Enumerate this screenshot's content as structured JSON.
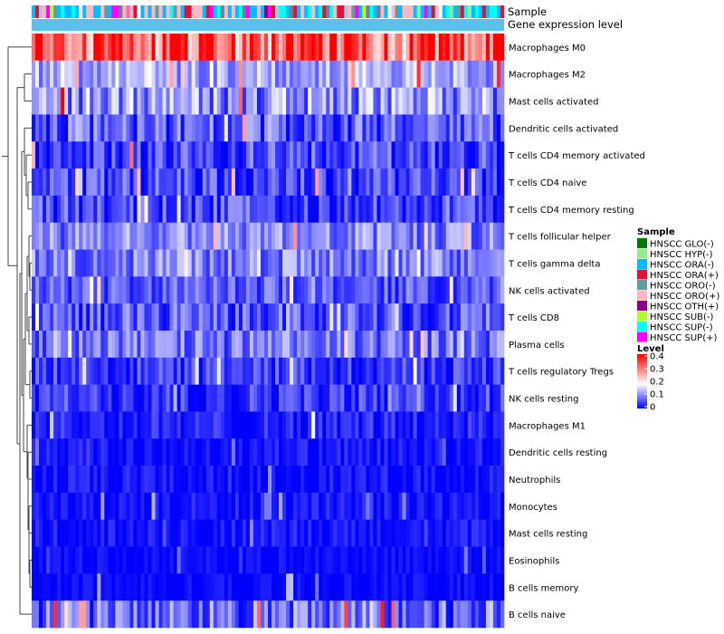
{
  "chart_data": {
    "type": "heatmap",
    "title": "",
    "annotation_tracks": [
      {
        "label": "Sample"
      },
      {
        "label": "Gene expression level"
      }
    ],
    "gene_expression_level_color": "#5bc0eb",
    "rows": [
      {
        "label": "Macrophages M0",
        "mean": 0.28,
        "spread": 0.1,
        "hot_rate": 0.3
      },
      {
        "label": "Macrophages M2",
        "mean": 0.12,
        "spread": 0.06,
        "hot_rate": 0.02
      },
      {
        "label": "Mast cells activated",
        "mean": 0.1,
        "spread": 0.08,
        "hot_rate": 0.04
      },
      {
        "label": "Dendritic cells activated",
        "mean": 0.06,
        "spread": 0.07,
        "hot_rate": 0.02
      },
      {
        "label": "T cells CD4 memory activated",
        "mean": 0.05,
        "spread": 0.06,
        "hot_rate": 0.02
      },
      {
        "label": "T cells CD4 naive",
        "mean": 0.05,
        "spread": 0.06,
        "hot_rate": 0.02
      },
      {
        "label": "T cells CD4 memory resting",
        "mean": 0.05,
        "spread": 0.06,
        "hot_rate": 0.01
      },
      {
        "label": "T cells follicular helper",
        "mean": 0.09,
        "spread": 0.06,
        "hot_rate": 0.01
      },
      {
        "label": "T cells gamma delta",
        "mean": 0.09,
        "spread": 0.06,
        "hot_rate": 0.01
      },
      {
        "label": "NK cells activated",
        "mean": 0.06,
        "spread": 0.05,
        "hot_rate": 0.01
      },
      {
        "label": "T cells CD8",
        "mean": 0.06,
        "spread": 0.06,
        "hot_rate": 0.01
      },
      {
        "label": "Plasma cells",
        "mean": 0.08,
        "spread": 0.06,
        "hot_rate": 0.01
      },
      {
        "label": "T cells regulatory  Tregs",
        "mean": 0.04,
        "spread": 0.05,
        "hot_rate": 0.0
      },
      {
        "label": "NK cells resting",
        "mean": 0.04,
        "spread": 0.05,
        "hot_rate": 0.0
      },
      {
        "label": "Macrophages M1",
        "mean": 0.02,
        "spread": 0.04,
        "hot_rate": 0.0
      },
      {
        "label": "Dendritic cells resting",
        "mean": 0.01,
        "spread": 0.03,
        "hot_rate": 0.0
      },
      {
        "label": "Neutrophils",
        "mean": 0.01,
        "spread": 0.03,
        "hot_rate": 0.0
      },
      {
        "label": "Monocytes",
        "mean": 0.01,
        "spread": 0.03,
        "hot_rate": 0.0
      },
      {
        "label": "Mast cells resting",
        "mean": 0.01,
        "spread": 0.03,
        "hot_rate": 0.0
      },
      {
        "label": "Eosinophils",
        "mean": 0.005,
        "spread": 0.02,
        "hot_rate": 0.0
      },
      {
        "label": "B cells memory",
        "mean": 0.005,
        "spread": 0.02,
        "hot_rate": 0.0
      },
      {
        "label": "B cells naive",
        "mean": 0.07,
        "spread": 0.08,
        "hot_rate": 0.06
      }
    ],
    "n_samples": 130,
    "value_range": [
      0,
      0.4
    ],
    "sample_legend": {
      "title": "Sample",
      "entries": [
        {
          "label": "HNSCC GLO(-)",
          "color": "#007a00"
        },
        {
          "label": "HNSCC HYP(-)",
          "color": "#90ee90"
        },
        {
          "label": "HNSCC ORA(-)",
          "color": "#00bfff"
        },
        {
          "label": "HNSCC ORA(+)",
          "color": "#dc143c"
        },
        {
          "label": "HNSCC ORO(-)",
          "color": "#5f9ea0"
        },
        {
          "label": "HNSCC ORO(+)",
          "color": "#ffb6c1"
        },
        {
          "label": "HNSCC OTH(+)",
          "color": "#8b008b"
        },
        {
          "label": "HNSCC SUB(-)",
          "color": "#adff2f"
        },
        {
          "label": "HNSCC SUP(-)",
          "color": "#00ffff"
        },
        {
          "label": "HNSCC SUP(+)",
          "color": "#ff00ff"
        }
      ]
    },
    "level_legend": {
      "title": "Level",
      "ticks": [
        "0.4",
        "0.3",
        "0.2",
        "0.1",
        "0"
      ],
      "colors": [
        "#0000ff",
        "#ffffff",
        "#ff0000"
      ]
    },
    "dendrogram_leaf_order": [
      0,
      1,
      2,
      3,
      4,
      5,
      6,
      7,
      8,
      9,
      10,
      11,
      12,
      13,
      14,
      15,
      16,
      17,
      18,
      19,
      20,
      21
    ]
  }
}
